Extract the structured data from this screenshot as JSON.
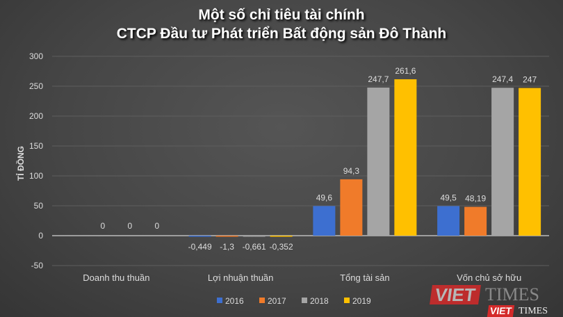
{
  "chart_data": {
    "type": "bar",
    "title": [
      "Một số chỉ tiêu tài chính",
      "CTCP Đầu tư Phát triển Bất động sản Đô Thành"
    ],
    "ylabel": "TỈ ĐỒNG",
    "xlabel": "",
    "ylim": [
      -50,
      300
    ],
    "yticks": [
      300,
      250,
      200,
      150,
      100,
      50,
      0,
      -50
    ],
    "grid": true,
    "legend_position": "bottom",
    "categories": [
      "Doanh thu thuần",
      "Lợi nhuận thuần",
      "Tổng tài sản",
      "Vốn chủ sở hữu"
    ],
    "series": [
      {
        "name": "2016",
        "color": "#3d6fd0",
        "values": [
          null,
          -0.449,
          49.6,
          49.5
        ],
        "labels": [
          null,
          "-0,449",
          "49,6",
          "49,5"
        ]
      },
      {
        "name": "2017",
        "color": "#f07b2a",
        "values": [
          0,
          -1.3,
          94.3,
          48.19
        ],
        "labels": [
          "0",
          "-1,3",
          "94,3",
          "48,19"
        ]
      },
      {
        "name": "2018",
        "color": "#a5a5a5",
        "values": [
          0,
          -0.661,
          247.7,
          247.4
        ],
        "labels": [
          "0",
          "-0,661",
          "247,7",
          "247,4"
        ]
      },
      {
        "name": "2019",
        "color": "#ffc000",
        "values": [
          0,
          -0.352,
          261.6,
          247
        ],
        "labels": [
          "0",
          "-0,352",
          "261,6",
          "247"
        ]
      }
    ]
  },
  "watermark": {
    "brand1": "VIET",
    "brand2": "TIMES"
  }
}
